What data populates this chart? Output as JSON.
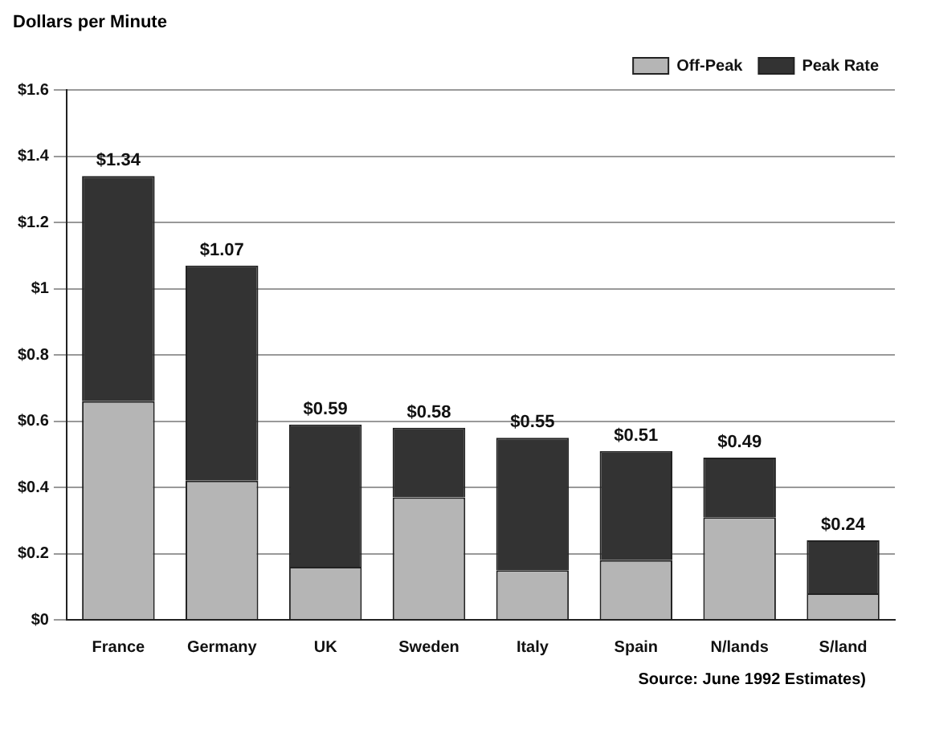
{
  "chart_data": {
    "type": "bar",
    "stacked": true,
    "ylabel": "Dollars per Minute",
    "categories": [
      "France",
      "Germany",
      "UK",
      "Sweden",
      "Italy",
      "Spain",
      "N/lands",
      "S/land"
    ],
    "series": [
      {
        "name": "Off-Peak",
        "color": "#b5b5b5",
        "values": [
          0.66,
          0.42,
          0.16,
          0.37,
          0.15,
          0.18,
          0.31,
          0.08
        ]
      },
      {
        "name": "Peak Rate",
        "color": "#333333",
        "values": [
          0.68,
          0.65,
          0.43,
          0.21,
          0.4,
          0.33,
          0.18,
          0.16
        ]
      }
    ],
    "totals": [
      "$1.34",
      "$1.07",
      "$0.59",
      "$0.58",
      "$0.55",
      "$0.51",
      "$0.49",
      "$0.24"
    ],
    "ylim": [
      0,
      1.6
    ],
    "yticks": [
      {
        "value": 0,
        "label": "$0"
      },
      {
        "value": 0.2,
        "label": "$0.2"
      },
      {
        "value": 0.4,
        "label": "$0.4"
      },
      {
        "value": 0.6,
        "label": "$0.6"
      },
      {
        "value": 0.8,
        "label": "$0.8"
      },
      {
        "value": 1,
        "label": "$1"
      },
      {
        "value": 1.2,
        "label": "$1.2"
      },
      {
        "value": 1.4,
        "label": "$1.4"
      },
      {
        "value": 1.6,
        "label": "$1.6"
      }
    ],
    "grid": "y",
    "legend": "top right",
    "annotations": [
      "Source: June 1992 Estimates)"
    ]
  }
}
